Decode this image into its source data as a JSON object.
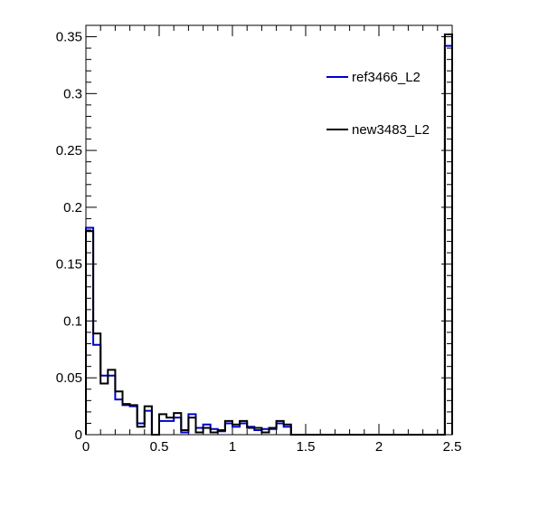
{
  "chart_data": {
    "type": "histogram",
    "title": "",
    "xlabel": "",
    "ylabel": "",
    "xlim": [
      0,
      2.5
    ],
    "ylim": [
      0,
      0.36
    ],
    "x_ticks": [
      0,
      0.5,
      1,
      1.5,
      2,
      2.5
    ],
    "x_tick_labels": [
      "0",
      "0.5",
      "1",
      "1.5",
      "2",
      "2.5"
    ],
    "y_ticks": [
      0,
      0.05,
      0.1,
      0.15,
      0.2,
      0.25,
      0.3,
      0.35
    ],
    "y_tick_labels": [
      "0",
      "0.05",
      "0.1",
      "0.15",
      "0.2",
      "0.25",
      "0.3",
      "0.35"
    ],
    "grid": false,
    "legend_position": "top-right",
    "bin_width": 0.05,
    "bin_start": 0,
    "series": [
      {
        "name": "ref3466_L2",
        "color": "#0000cc",
        "values": [
          0.182,
          0.079,
          0.052,
          0.052,
          0.031,
          0.026,
          0.025,
          0.01,
          0.021,
          0.0,
          0.012,
          0.012,
          0.015,
          0.002,
          0.018,
          0.006,
          0.009,
          0.005,
          0.003,
          0.01,
          0.007,
          0.01,
          0.007,
          0.004,
          0.005,
          0.005,
          0.01,
          0.007,
          0.0,
          0.0,
          0.0,
          0.0,
          0.0,
          0.0,
          0.0,
          0.0,
          0.0,
          0.0,
          0.0,
          0.0,
          0.0,
          0.0,
          0.0,
          0.0,
          0.0,
          0.0,
          0.0,
          0.0,
          0.0,
          0.342
        ]
      },
      {
        "name": "new3483_L2",
        "color": "#000000",
        "values": [
          0.179,
          0.089,
          0.045,
          0.057,
          0.038,
          0.027,
          0.026,
          0.007,
          0.025,
          0.0,
          0.018,
          0.015,
          0.019,
          0.004,
          0.015,
          0.002,
          0.006,
          0.002,
          0.004,
          0.012,
          0.009,
          0.012,
          0.006,
          0.006,
          0.002,
          0.006,
          0.012,
          0.009,
          0.0,
          0.0,
          0.0,
          0.0,
          0.0,
          0.0,
          0.0,
          0.0,
          0.0,
          0.0,
          0.0,
          0.0,
          0.0,
          0.0,
          0.0,
          0.0,
          0.0,
          0.0,
          0.0,
          0.0,
          0.0,
          0.352
        ]
      }
    ]
  }
}
